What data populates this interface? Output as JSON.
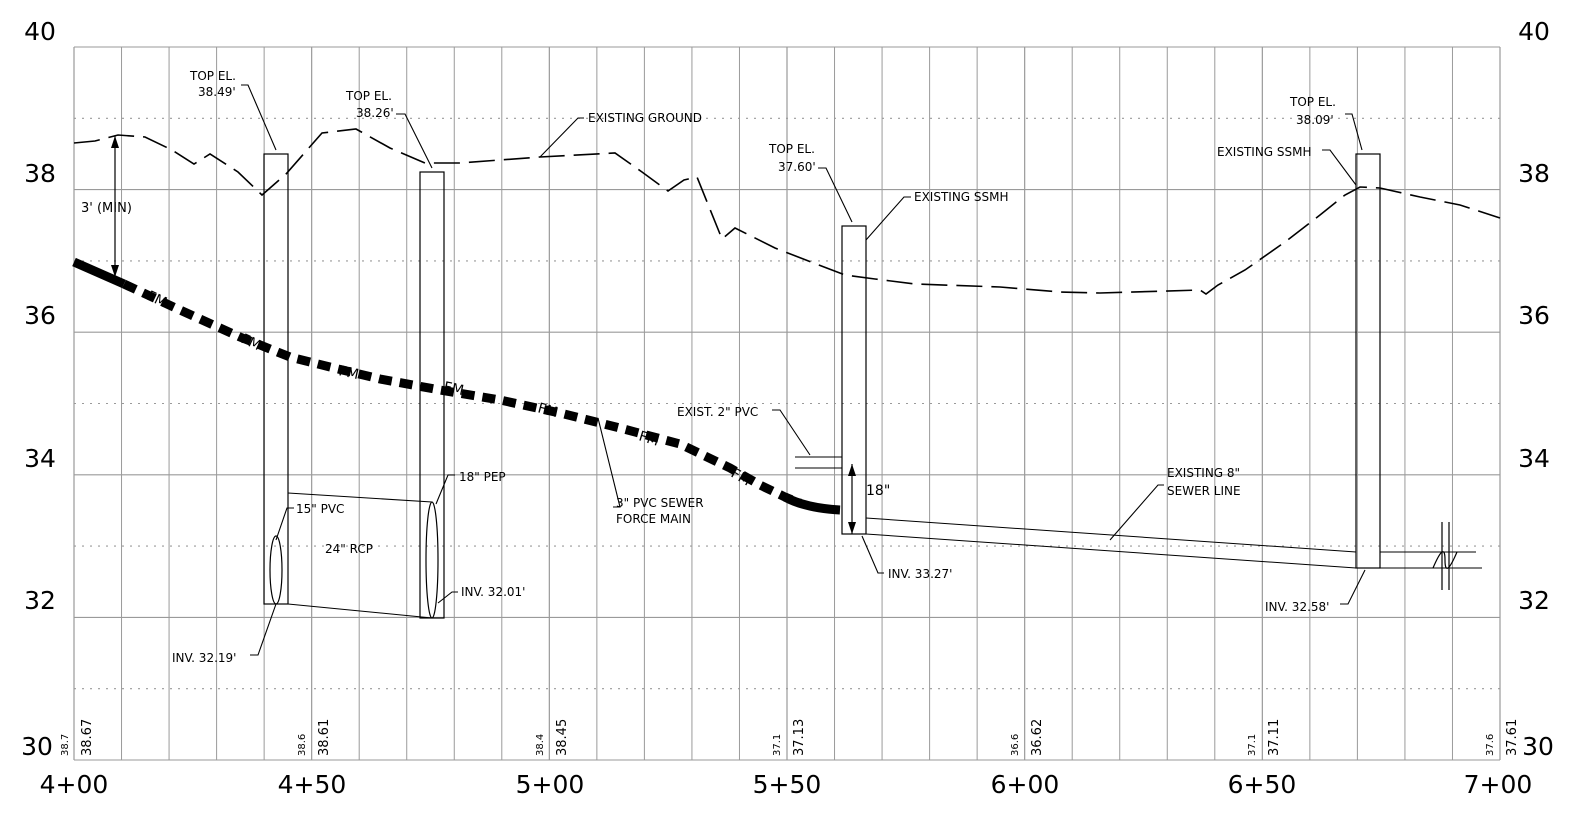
{
  "elevation_ticks_left": [
    "40",
    "38",
    "36",
    "34",
    "32",
    "30"
  ],
  "elevation_ticks_right": [
    "40",
    "38",
    "36",
    "34",
    "32",
    "30"
  ],
  "station_ticks": [
    "4+00",
    "4+50",
    "5+00",
    "5+50",
    "6+00",
    "6+50",
    "7+00"
  ],
  "ground_elevations": [
    {
      "existing": "38.7",
      "proposed": "38.67"
    },
    {
      "existing": "38.6",
      "proposed": "38.61"
    },
    {
      "existing": "38.4",
      "proposed": "38.45"
    },
    {
      "existing": "37.1",
      "proposed": "37.13"
    },
    {
      "existing": "36.6",
      "proposed": "36.62"
    },
    {
      "existing": "37.1",
      "proposed": "37.11"
    },
    {
      "existing": "37.6",
      "proposed": "37.61"
    }
  ],
  "annotations": {
    "top_el_1_line1": "TOP EL.",
    "top_el_1_line2": "38.49'",
    "top_el_2_line1": "TOP EL.",
    "top_el_2_line2": "38.26'",
    "existing_ground": "EXISTING GROUND",
    "top_el_3_line1": "TOP EL.",
    "top_el_3_line2": "37.60'",
    "existing_ssmh_1": "EXISTING SSMH",
    "top_el_4_line1": "TOP EL.",
    "top_el_4_line2": "38.09'",
    "existing_ssmh_2": "EXISTING SSMH",
    "cover_min": "3' (MIN)",
    "fm_label": "FM",
    "exist_2in_pvc": "EXIST. 2\" PVC",
    "eighteen_in": "18\"",
    "existing_8in_line1": "EXISTING 8\"",
    "existing_8in_line2": "SEWER LINE",
    "pep_18in": "18\" PEP",
    "pvc_15in": "15\" PVC",
    "rcp_24in": "24\" RCP",
    "force_main_line1": "3\" PVC SEWER",
    "force_main_line2": "FORCE MAIN",
    "inv_3201": "INV. 32.01'",
    "inv_3327": "INV. 33.27'",
    "inv_3219": "INV. 32.19'",
    "inv_3258": "INV. 32.58'"
  }
}
